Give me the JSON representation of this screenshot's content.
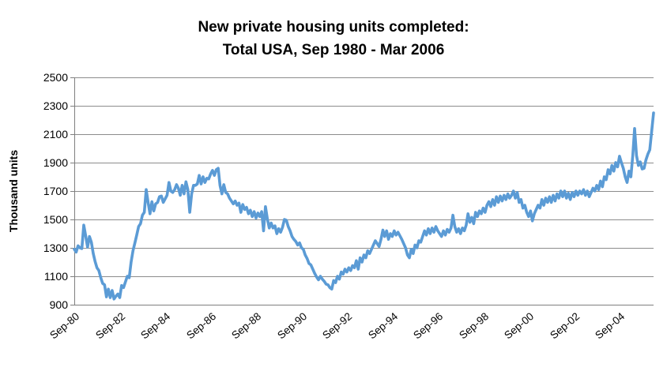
{
  "title": {
    "line1": "New private housing units completed:",
    "line2": "Total USA, Sep 1980 - Mar 2006"
  },
  "chart_data": {
    "type": "line",
    "title": "New private housing units completed: Total USA, Sep 1980 - Mar 2006",
    "ylabel": "Thousand units",
    "xlabel": "",
    "ylim": [
      900,
      2500
    ],
    "y_ticks": [
      900,
      1100,
      1300,
      1500,
      1700,
      1900,
      2100,
      2300,
      2500
    ],
    "x_tick_labels": [
      "Sep-80",
      "Sep-82",
      "Sep-84",
      "Sep-86",
      "Sep-88",
      "Sep-90",
      "Sep-92",
      "Sep-94",
      "Sep-96",
      "Sep-98",
      "Sep-00",
      "Sep-02",
      "Sep-04"
    ],
    "x_tick_month_indices": [
      0,
      24,
      48,
      72,
      96,
      120,
      144,
      168,
      192,
      216,
      240,
      264,
      288
    ],
    "x_start": "Sep-1980",
    "x_end": "Mar-2006",
    "frequency": "monthly",
    "grid": "horizontal",
    "legend_position": "none",
    "line_color": "#5B9BD5",
    "gridline_color": "#8C8C8C",
    "axis_color": "#7F7F7F",
    "series_name": "New private housing units completed (thousand units)",
    "values_monthly": [
      1290,
      1270,
      1315,
      1300,
      1295,
      1460,
      1385,
      1305,
      1380,
      1340,
      1260,
      1205,
      1160,
      1140,
      1090,
      1050,
      1040,
      955,
      1010,
      950,
      1000,
      940,
      960,
      975,
      950,
      1035,
      1020,
      1060,
      1100,
      1090,
      1200,
      1280,
      1335,
      1390,
      1450,
      1470,
      1530,
      1550,
      1710,
      1620,
      1540,
      1625,
      1560,
      1610,
      1620,
      1660,
      1665,
      1620,
      1645,
      1670,
      1760,
      1700,
      1690,
      1710,
      1745,
      1720,
      1670,
      1740,
      1680,
      1765,
      1710,
      1550,
      1680,
      1740,
      1740,
      1750,
      1810,
      1750,
      1800,
      1760,
      1790,
      1785,
      1820,
      1845,
      1810,
      1850,
      1860,
      1740,
      1680,
      1745,
      1690,
      1680,
      1650,
      1630,
      1610,
      1630,
      1600,
      1615,
      1550,
      1605,
      1570,
      1585,
      1540,
      1565,
      1520,
      1555,
      1510,
      1545,
      1520,
      1555,
      1420,
      1590,
      1505,
      1440,
      1475,
      1440,
      1455,
      1400,
      1435,
      1410,
      1445,
      1500,
      1495,
      1450,
      1420,
      1380,
      1360,
      1345,
      1320,
      1335,
      1300,
      1290,
      1250,
      1225,
      1190,
      1180,
      1150,
      1120,
      1095,
      1075,
      1100,
      1080,
      1065,
      1045,
      1040,
      1020,
      1010,
      1070,
      1055,
      1100,
      1080,
      1130,
      1115,
      1150,
      1130,
      1160,
      1140,
      1175,
      1160,
      1210,
      1150,
      1230,
      1200,
      1250,
      1230,
      1280,
      1260,
      1290,
      1320,
      1350,
      1330,
      1310,
      1360,
      1425,
      1380,
      1420,
      1360,
      1400,
      1380,
      1420,
      1390,
      1410,
      1385,
      1360,
      1330,
      1300,
      1250,
      1230,
      1290,
      1260,
      1320,
      1300,
      1350,
      1340,
      1380,
      1420,
      1390,
      1435,
      1400,
      1440,
      1410,
      1450,
      1420,
      1400,
      1380,
      1420,
      1390,
      1430,
      1410,
      1440,
      1530,
      1450,
      1410,
      1435,
      1400,
      1440,
      1420,
      1460,
      1540,
      1480,
      1515,
      1470,
      1550,
      1520,
      1560,
      1540,
      1580,
      1550,
      1600,
      1625,
      1590,
      1640,
      1600,
      1660,
      1620,
      1665,
      1630,
      1670,
      1640,
      1680,
      1650,
      1670,
      1700,
      1650,
      1690,
      1620,
      1640,
      1580,
      1600,
      1550,
      1520,
      1560,
      1490,
      1540,
      1570,
      1600,
      1580,
      1640,
      1600,
      1650,
      1620,
      1660,
      1620,
      1670,
      1630,
      1680,
      1650,
      1700,
      1660,
      1700,
      1650,
      1685,
      1640,
      1690,
      1660,
      1700,
      1670,
      1700,
      1680,
      1710,
      1670,
      1700,
      1660,
      1690,
      1720,
      1700,
      1740,
      1710,
      1770,
      1730,
      1800,
      1780,
      1850,
      1820,
      1880,
      1840,
      1900,
      1870,
      1945,
      1900,
      1860,
      1800,
      1760,
      1840,
      1800,
      1950,
      2140,
      1950,
      1880,
      1905,
      1855,
      1860,
      1920,
      1960,
      1990,
      2120,
      2250
    ]
  }
}
